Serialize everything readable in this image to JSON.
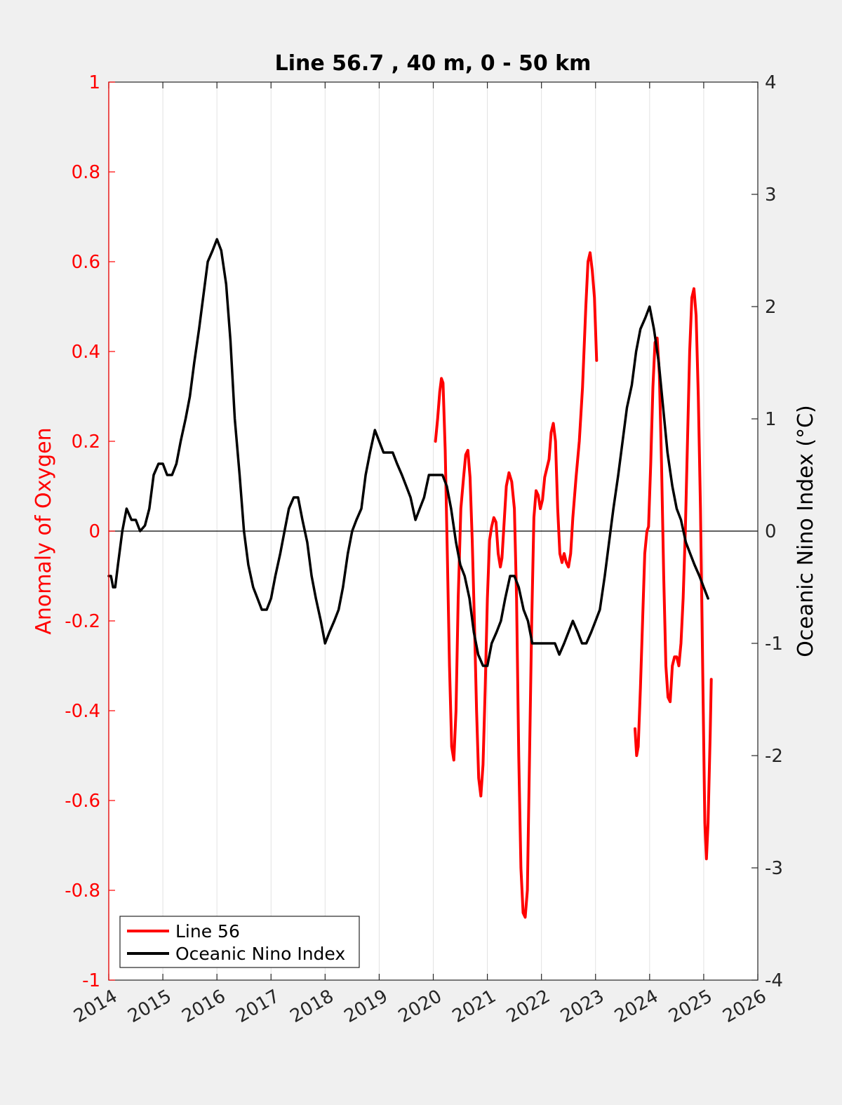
{
  "chart_data": {
    "type": "line",
    "title": "Line 56.7 , 40 m, 0 - 50 km",
    "ylabel_left": "Anomaly of Oxygen",
    "ylabel_right": "Oceanic Nino Index (°C)",
    "xlim": [
      2014,
      2026
    ],
    "ylim_left": [
      -1,
      1
    ],
    "ylim_right": [
      -4,
      4
    ],
    "x_ticks": [
      2014,
      2015,
      2016,
      2017,
      2018,
      2019,
      2020,
      2021,
      2022,
      2023,
      2024,
      2025,
      2026
    ],
    "x_tick_labels": [
      "2014",
      "2015",
      "2016",
      "2017",
      "2018",
      "2019",
      "2020",
      "2021",
      "2022",
      "2023",
      "2024",
      "2025",
      "2026"
    ],
    "y_left_ticks": [
      -1,
      -0.8,
      -0.6,
      -0.4,
      -0.2,
      0,
      0.2,
      0.4,
      0.6,
      0.8,
      1
    ],
    "y_left_tick_labels": [
      "-1",
      "-0.8",
      "-0.6",
      "-0.4",
      "-0.2",
      "0",
      "0.2",
      "0.4",
      "0.6",
      "0.8",
      "1"
    ],
    "y_right_ticks": [
      -4,
      -3,
      -2,
      -1,
      0,
      1,
      2,
      3,
      4
    ],
    "y_right_tick_labels": [
      "-4",
      "-3",
      "-2",
      "-1",
      "0",
      "1",
      "2",
      "3",
      "4"
    ],
    "grid": "vertical",
    "zero_line": true,
    "legend_position": "bottom-left",
    "colors": {
      "line56": "#ff0000",
      "oni": "#000000",
      "left_axis": "#ff0000",
      "right_axis": "#000000"
    },
    "series": [
      {
        "name": "Line 56",
        "axis": "left",
        "color": "#ff0000",
        "segments": [
          [
            [
              2020.04,
              0.2
            ],
            [
              2020.08,
              0.25
            ],
            [
              2020.12,
              0.31
            ],
            [
              2020.15,
              0.34
            ],
            [
              2020.18,
              0.33
            ],
            [
              2020.22,
              0.18
            ],
            [
              2020.26,
              -0.05
            ],
            [
              2020.3,
              -0.3
            ],
            [
              2020.34,
              -0.48
            ],
            [
              2020.38,
              -0.51
            ],
            [
              2020.42,
              -0.4
            ],
            [
              2020.46,
              -0.15
            ],
            [
              2020.51,
              0.05
            ],
            [
              2020.56,
              0.12
            ],
            [
              2020.6,
              0.17
            ],
            [
              2020.64,
              0.18
            ],
            [
              2020.68,
              0.12
            ],
            [
              2020.72,
              -0.02
            ],
            [
              2020.76,
              -0.2
            ],
            [
              2020.8,
              -0.4
            ],
            [
              2020.84,
              -0.55
            ],
            [
              2020.88,
              -0.59
            ],
            [
              2020.92,
              -0.52
            ],
            [
              2020.96,
              -0.35
            ],
            [
              2021.0,
              -0.15
            ],
            [
              2021.04,
              -0.02
            ],
            [
              2021.08,
              0.01
            ],
            [
              2021.12,
              0.03
            ],
            [
              2021.16,
              0.02
            ],
            [
              2021.2,
              -0.05
            ],
            [
              2021.24,
              -0.08
            ],
            [
              2021.27,
              -0.06
            ],
            [
              2021.31,
              0.02
            ],
            [
              2021.35,
              0.1
            ],
            [
              2021.4,
              0.13
            ],
            [
              2021.45,
              0.11
            ],
            [
              2021.5,
              0.05
            ],
            [
              2021.54,
              -0.15
            ],
            [
              2021.58,
              -0.5
            ],
            [
              2021.62,
              -0.75
            ],
            [
              2021.66,
              -0.85
            ],
            [
              2021.7,
              -0.86
            ],
            [
              2021.74,
              -0.8
            ],
            [
              2021.78,
              -0.5
            ],
            [
              2021.82,
              -0.2
            ],
            [
              2021.86,
              0.03
            ],
            [
              2021.9,
              0.09
            ],
            [
              2021.94,
              0.08
            ],
            [
              2021.98,
              0.05
            ],
            [
              2022.02,
              0.07
            ],
            [
              2022.06,
              0.12
            ],
            [
              2022.1,
              0.14
            ],
            [
              2022.14,
              0.16
            ],
            [
              2022.18,
              0.22
            ],
            [
              2022.22,
              0.24
            ],
            [
              2022.26,
              0.2
            ],
            [
              2022.3,
              0.05
            ],
            [
              2022.34,
              -0.05
            ],
            [
              2022.38,
              -0.07
            ],
            [
              2022.42,
              -0.05
            ],
            [
              2022.46,
              -0.07
            ],
            [
              2022.5,
              -0.08
            ],
            [
              2022.54,
              -0.05
            ],
            [
              2022.58,
              0.03
            ],
            [
              2022.64,
              0.12
            ],
            [
              2022.7,
              0.2
            ],
            [
              2022.76,
              0.32
            ],
            [
              2022.82,
              0.5
            ],
            [
              2022.86,
              0.6
            ],
            [
              2022.9,
              0.62
            ],
            [
              2022.94,
              0.58
            ],
            [
              2022.98,
              0.52
            ],
            [
              2023.02,
              0.38
            ]
          ],
          [
            [
              2023.73,
              -0.44
            ],
            [
              2023.76,
              -0.5
            ],
            [
              2023.79,
              -0.48
            ],
            [
              2023.83,
              -0.35
            ],
            [
              2023.87,
              -0.2
            ],
            [
              2023.91,
              -0.05
            ],
            [
              2023.95,
              0.0
            ],
            [
              2023.98,
              0.01
            ],
            [
              2024.02,
              0.15
            ],
            [
              2024.06,
              0.32
            ],
            [
              2024.1,
              0.42
            ],
            [
              2024.14,
              0.43
            ],
            [
              2024.18,
              0.35
            ],
            [
              2024.22,
              0.15
            ],
            [
              2024.26,
              -0.1
            ],
            [
              2024.3,
              -0.3
            ],
            [
              2024.34,
              -0.37
            ],
            [
              2024.38,
              -0.38
            ],
            [
              2024.42,
              -0.3
            ],
            [
              2024.46,
              -0.28
            ],
            [
              2024.5,
              -0.28
            ],
            [
              2024.54,
              -0.3
            ],
            [
              2024.58,
              -0.25
            ],
            [
              2024.62,
              -0.15
            ],
            [
              2024.66,
              0.0
            ],
            [
              2024.7,
              0.2
            ],
            [
              2024.74,
              0.4
            ],
            [
              2024.78,
              0.52
            ],
            [
              2024.82,
              0.54
            ],
            [
              2024.86,
              0.48
            ],
            [
              2024.9,
              0.3
            ],
            [
              2024.94,
              0.05
            ],
            [
              2024.98,
              -0.3
            ],
            [
              2025.02,
              -0.65
            ],
            [
              2025.05,
              -0.73
            ],
            [
              2025.08,
              -0.65
            ],
            [
              2025.12,
              -0.45
            ],
            [
              2025.14,
              -0.33
            ]
          ]
        ]
      },
      {
        "name": "Oceanic Nino Index",
        "axis": "right",
        "color": "#000000",
        "points": [
          [
            2014.0,
            -0.4
          ],
          [
            2014.04,
            -0.4
          ],
          [
            2014.08,
            -0.5
          ],
          [
            2014.12,
            -0.5
          ],
          [
            2014.17,
            -0.3
          ],
          [
            2014.25,
            0.0
          ],
          [
            2014.33,
            0.2
          ],
          [
            2014.42,
            0.1
          ],
          [
            2014.5,
            0.1
          ],
          [
            2014.58,
            0.0
          ],
          [
            2014.67,
            0.05
          ],
          [
            2014.75,
            0.2
          ],
          [
            2014.83,
            0.5
          ],
          [
            2014.92,
            0.6
          ],
          [
            2015.0,
            0.6
          ],
          [
            2015.08,
            0.5
          ],
          [
            2015.17,
            0.5
          ],
          [
            2015.25,
            0.6
          ],
          [
            2015.33,
            0.8
          ],
          [
            2015.42,
            1.0
          ],
          [
            2015.5,
            1.2
          ],
          [
            2015.58,
            1.5
          ],
          [
            2015.67,
            1.8
          ],
          [
            2015.75,
            2.1
          ],
          [
            2015.83,
            2.4
          ],
          [
            2015.92,
            2.5
          ],
          [
            2016.0,
            2.6
          ],
          [
            2016.08,
            2.5
          ],
          [
            2016.17,
            2.2
          ],
          [
            2016.25,
            1.7
          ],
          [
            2016.33,
            1.0
          ],
          [
            2016.42,
            0.5
          ],
          [
            2016.5,
            0.0
          ],
          [
            2016.58,
            -0.3
          ],
          [
            2016.67,
            -0.5
          ],
          [
            2016.75,
            -0.6
          ],
          [
            2016.83,
            -0.7
          ],
          [
            2016.92,
            -0.7
          ],
          [
            2017.0,
            -0.6
          ],
          [
            2017.08,
            -0.4
          ],
          [
            2017.17,
            -0.2
          ],
          [
            2017.25,
            0.0
          ],
          [
            2017.33,
            0.2
          ],
          [
            2017.42,
            0.3
          ],
          [
            2017.5,
            0.3
          ],
          [
            2017.58,
            0.1
          ],
          [
            2017.67,
            -0.1
          ],
          [
            2017.75,
            -0.4
          ],
          [
            2017.83,
            -0.6
          ],
          [
            2017.92,
            -0.8
          ],
          [
            2018.0,
            -1.0
          ],
          [
            2018.08,
            -0.9
          ],
          [
            2018.17,
            -0.8
          ],
          [
            2018.25,
            -0.7
          ],
          [
            2018.33,
            -0.5
          ],
          [
            2018.42,
            -0.2
          ],
          [
            2018.5,
            0.0
          ],
          [
            2018.58,
            0.1
          ],
          [
            2018.67,
            0.2
          ],
          [
            2018.75,
            0.5
          ],
          [
            2018.83,
            0.7
          ],
          [
            2018.92,
            0.9
          ],
          [
            2019.0,
            0.8
          ],
          [
            2019.08,
            0.7
          ],
          [
            2019.17,
            0.7
          ],
          [
            2019.25,
            0.7
          ],
          [
            2019.33,
            0.6
          ],
          [
            2019.42,
            0.5
          ],
          [
            2019.5,
            0.4
          ],
          [
            2019.58,
            0.3
          ],
          [
            2019.67,
            0.1
          ],
          [
            2019.75,
            0.2
          ],
          [
            2019.83,
            0.3
          ],
          [
            2019.92,
            0.5
          ],
          [
            2020.0,
            0.5
          ],
          [
            2020.08,
            0.5
          ],
          [
            2020.17,
            0.5
          ],
          [
            2020.25,
            0.4
          ],
          [
            2020.33,
            0.2
          ],
          [
            2020.42,
            -0.1
          ],
          [
            2020.5,
            -0.3
          ],
          [
            2020.58,
            -0.4
          ],
          [
            2020.67,
            -0.6
          ],
          [
            2020.75,
            -0.9
          ],
          [
            2020.83,
            -1.1
          ],
          [
            2020.92,
            -1.2
          ],
          [
            2021.0,
            -1.2
          ],
          [
            2021.08,
            -1.0
          ],
          [
            2021.17,
            -0.9
          ],
          [
            2021.25,
            -0.8
          ],
          [
            2021.33,
            -0.6
          ],
          [
            2021.42,
            -0.4
          ],
          [
            2021.5,
            -0.4
          ],
          [
            2021.58,
            -0.5
          ],
          [
            2021.67,
            -0.7
          ],
          [
            2021.75,
            -0.8
          ],
          [
            2021.83,
            -1.0
          ],
          [
            2021.92,
            -1.0
          ],
          [
            2022.0,
            -1.0
          ],
          [
            2022.08,
            -1.0
          ],
          [
            2022.17,
            -1.0
          ],
          [
            2022.25,
            -1.0
          ],
          [
            2022.33,
            -1.1
          ],
          [
            2022.42,
            -1.0
          ],
          [
            2022.5,
            -0.9
          ],
          [
            2022.58,
            -0.8
          ],
          [
            2022.67,
            -0.9
          ],
          [
            2022.75,
            -1.0
          ],
          [
            2022.83,
            -1.0
          ],
          [
            2022.92,
            -0.9
          ],
          [
            2023.0,
            -0.8
          ],
          [
            2023.08,
            -0.7
          ],
          [
            2023.17,
            -0.4
          ],
          [
            2023.25,
            -0.1
          ],
          [
            2023.33,
            0.2
          ],
          [
            2023.42,
            0.5
          ],
          [
            2023.5,
            0.8
          ],
          [
            2023.58,
            1.1
          ],
          [
            2023.67,
            1.3
          ],
          [
            2023.75,
            1.6
          ],
          [
            2023.83,
            1.8
          ],
          [
            2023.92,
            1.9
          ],
          [
            2024.0,
            2.0
          ],
          [
            2024.08,
            1.8
          ],
          [
            2024.17,
            1.5
          ],
          [
            2024.25,
            1.1
          ],
          [
            2024.33,
            0.7
          ],
          [
            2024.42,
            0.4
          ],
          [
            2024.5,
            0.2
          ],
          [
            2024.58,
            0.1
          ],
          [
            2024.67,
            -0.1
          ],
          [
            2024.75,
            -0.2
          ],
          [
            2024.83,
            -0.3
          ],
          [
            2024.92,
            -0.4
          ],
          [
            2025.0,
            -0.5
          ],
          [
            2025.08,
            -0.6
          ]
        ]
      }
    ]
  },
  "legend": {
    "line56_label": "Line 56",
    "oni_label": "Oceanic Nino Index"
  }
}
